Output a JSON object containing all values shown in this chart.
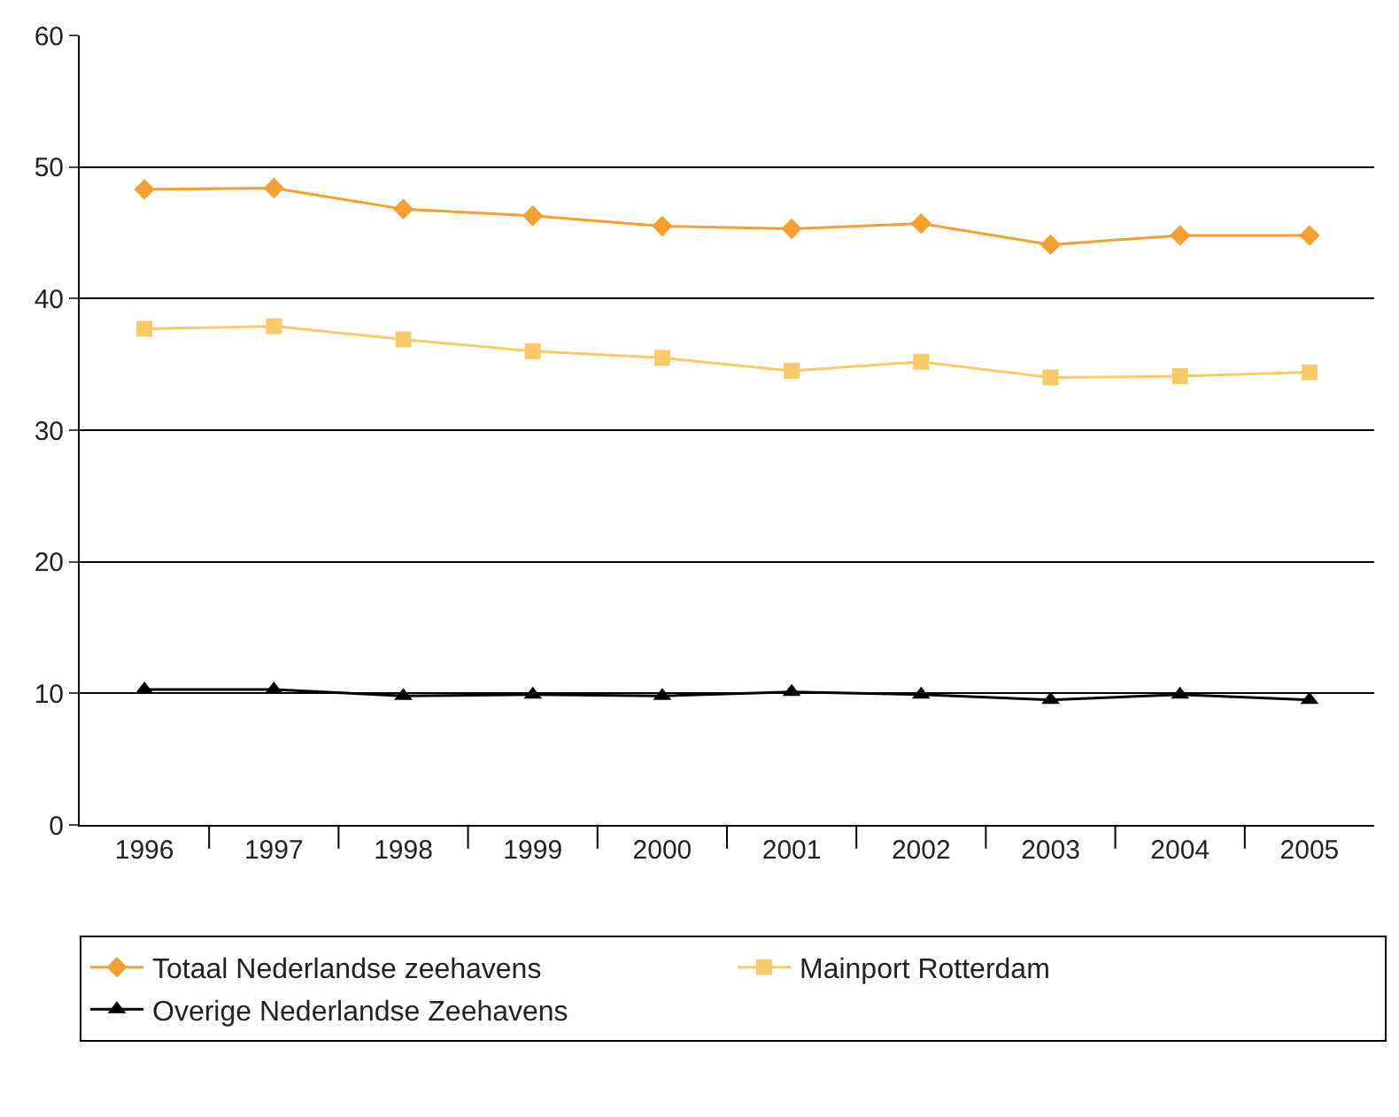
{
  "chart_data": {
    "type": "line",
    "categories": [
      "1996",
      "1997",
      "1998",
      "1999",
      "2000",
      "2001",
      "2002",
      "2003",
      "2004",
      "2005"
    ],
    "series": [
      {
        "name": "Totaal Nederlandse zeehavens",
        "color": "#f5a030",
        "marker": "diamond",
        "values": [
          48.3,
          48.4,
          46.8,
          46.3,
          45.5,
          45.3,
          45.7,
          44.1,
          44.8,
          44.8
        ]
      },
      {
        "name": "Mainport Rotterdam",
        "color": "#f9c96a",
        "marker": "square",
        "values": [
          37.7,
          37.9,
          36.9,
          36.0,
          35.5,
          34.5,
          35.2,
          34.0,
          34.1,
          34.4
        ]
      },
      {
        "name": "Overige Nederlandse Zeehavens",
        "color": "#000000",
        "marker": "triangle",
        "values": [
          10.3,
          10.3,
          9.8,
          9.9,
          9.8,
          10.1,
          9.9,
          9.5,
          9.9,
          9.5
        ]
      }
    ],
    "ylim": [
      0,
      60
    ],
    "yticks": [
      0,
      10,
      20,
      30,
      40,
      50,
      60
    ],
    "grid": "y",
    "legend": "bottom"
  }
}
